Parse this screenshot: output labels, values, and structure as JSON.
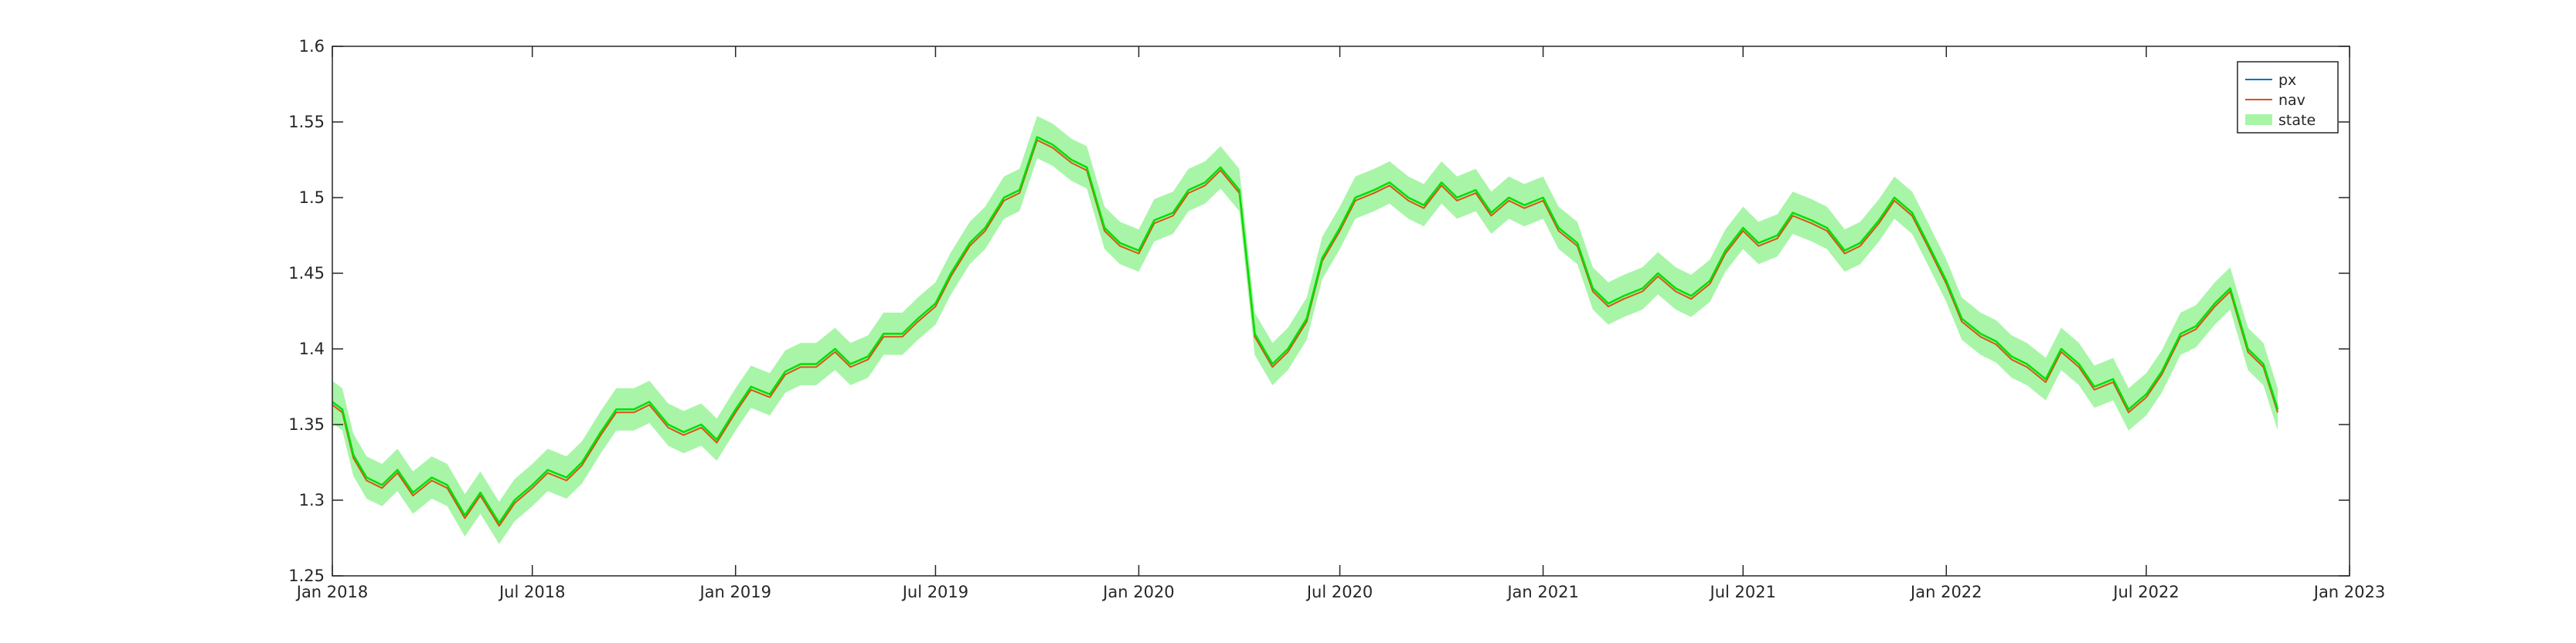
{
  "chart_data": {
    "type": "line",
    "title": "",
    "xlabel": "",
    "ylabel": "",
    "xlim": [
      "2018-01-01",
      "2023-01-01"
    ],
    "ylim": [
      1.25,
      1.6
    ],
    "x_ticks": [
      {
        "date": "2018-01-01",
        "label": "Jan 2018"
      },
      {
        "date": "2018-07-01",
        "label": "Jul 2018"
      },
      {
        "date": "2019-01-01",
        "label": "Jan 2019"
      },
      {
        "date": "2019-07-01",
        "label": "Jul 2019"
      },
      {
        "date": "2020-01-01",
        "label": "Jan 2020"
      },
      {
        "date": "2020-07-01",
        "label": "Jul 2020"
      },
      {
        "date": "2021-01-01",
        "label": "Jan 2021"
      },
      {
        "date": "2021-07-01",
        "label": "Jul 2021"
      },
      {
        "date": "2022-01-01",
        "label": "Jan 2022"
      },
      {
        "date": "2022-07-01",
        "label": "Jul 2022"
      },
      {
        "date": "2023-01-01",
        "label": "Jan 2023"
      }
    ],
    "y_ticks": [
      {
        "value": 1.25,
        "label": "1.25"
      },
      {
        "value": 1.3,
        "label": "1.3"
      },
      {
        "value": 1.35,
        "label": "1.35"
      },
      {
        "value": 1.4,
        "label": "1.4"
      },
      {
        "value": 1.45,
        "label": "1.45"
      },
      {
        "value": 1.5,
        "label": "1.5"
      },
      {
        "value": 1.55,
        "label": "1.55"
      },
      {
        "value": 1.6,
        "label": "1.6"
      }
    ],
    "grid": false,
    "legend_position": "top-right",
    "band_halfwidth": 0.014,
    "series": [
      {
        "name": "px",
        "color": "#0072bd",
        "kind": "line",
        "y_offset": 0.0
      },
      {
        "name": "nav",
        "color": "#d95319",
        "kind": "line",
        "y_offset": -0.002
      },
      {
        "name": "state",
        "color": "#00e000",
        "band_color": "#a8f5a8",
        "kind": "line+band",
        "y_offset": 0.0
      }
    ],
    "x": [
      "2018-01-01",
      "2018-01-10",
      "2018-01-20",
      "2018-02-01",
      "2018-02-15",
      "2018-03-01",
      "2018-03-15",
      "2018-04-01",
      "2018-04-15",
      "2018-05-01",
      "2018-05-15",
      "2018-06-01",
      "2018-06-15",
      "2018-07-01",
      "2018-07-15",
      "2018-08-01",
      "2018-08-15",
      "2018-09-01",
      "2018-09-15",
      "2018-10-01",
      "2018-10-15",
      "2018-11-01",
      "2018-11-15",
      "2018-12-01",
      "2018-12-15",
      "2019-01-01",
      "2019-01-15",
      "2019-02-01",
      "2019-02-15",
      "2019-03-01",
      "2019-03-15",
      "2019-04-01",
      "2019-04-15",
      "2019-05-01",
      "2019-05-15",
      "2019-06-01",
      "2019-06-15",
      "2019-07-01",
      "2019-07-15",
      "2019-08-01",
      "2019-08-15",
      "2019-09-01",
      "2019-09-15",
      "2019-10-01",
      "2019-10-15",
      "2019-11-01",
      "2019-11-15",
      "2019-12-01",
      "2019-12-15",
      "2020-01-01",
      "2020-01-15",
      "2020-02-01",
      "2020-02-15",
      "2020-03-01",
      "2020-03-15",
      "2020-04-01",
      "2020-04-15",
      "2020-05-01",
      "2020-05-15",
      "2020-06-01",
      "2020-06-15",
      "2020-07-01",
      "2020-07-15",
      "2020-08-01",
      "2020-08-15",
      "2020-09-01",
      "2020-09-15",
      "2020-10-01",
      "2020-10-15",
      "2020-11-01",
      "2020-11-15",
      "2020-12-01",
      "2020-12-15",
      "2021-01-01",
      "2021-01-15",
      "2021-02-01",
      "2021-02-15",
      "2021-03-01",
      "2021-03-15",
      "2021-04-01",
      "2021-04-15",
      "2021-05-01",
      "2021-05-15",
      "2021-06-01",
      "2021-06-15",
      "2021-07-01",
      "2021-07-15",
      "2021-08-01",
      "2021-08-15",
      "2021-09-01",
      "2021-09-15",
      "2021-10-01",
      "2021-10-15",
      "2021-11-01",
      "2021-11-15",
      "2021-12-01",
      "2021-12-15",
      "2022-01-01",
      "2022-01-15",
      "2022-02-01",
      "2022-02-15",
      "2022-03-01",
      "2022-03-15",
      "2022-04-01",
      "2022-04-15",
      "2022-05-01",
      "2022-05-15",
      "2022-06-01",
      "2022-06-15",
      "2022-07-01",
      "2022-07-15",
      "2022-08-01",
      "2022-08-15",
      "2022-09-01",
      "2022-09-15",
      "2022-10-01",
      "2022-10-15",
      "2022-10-28"
    ],
    "y": [
      1.365,
      1.36,
      1.33,
      1.315,
      1.31,
      1.32,
      1.305,
      1.315,
      1.31,
      1.29,
      1.305,
      1.285,
      1.3,
      1.31,
      1.32,
      1.315,
      1.325,
      1.345,
      1.36,
      1.36,
      1.365,
      1.35,
      1.345,
      1.35,
      1.34,
      1.36,
      1.375,
      1.37,
      1.385,
      1.39,
      1.39,
      1.4,
      1.39,
      1.395,
      1.41,
      1.41,
      1.42,
      1.43,
      1.45,
      1.47,
      1.48,
      1.5,
      1.505,
      1.54,
      1.535,
      1.525,
      1.52,
      1.48,
      1.47,
      1.465,
      1.485,
      1.49,
      1.505,
      1.51,
      1.52,
      1.505,
      1.41,
      1.39,
      1.4,
      1.42,
      1.46,
      1.48,
      1.5,
      1.505,
      1.51,
      1.5,
      1.495,
      1.51,
      1.5,
      1.505,
      1.49,
      1.5,
      1.495,
      1.5,
      1.48,
      1.47,
      1.44,
      1.43,
      1.435,
      1.44,
      1.45,
      1.44,
      1.435,
      1.445,
      1.465,
      1.48,
      1.47,
      1.475,
      1.49,
      1.485,
      1.48,
      1.465,
      1.47,
      1.485,
      1.5,
      1.49,
      1.47,
      1.445,
      1.42,
      1.41,
      1.405,
      1.395,
      1.39,
      1.38,
      1.4,
      1.39,
      1.375,
      1.38,
      1.36,
      1.37,
      1.385,
      1.41,
      1.415,
      1.43,
      1.44,
      1.4,
      1.39,
      1.36
    ]
  },
  "legend": {
    "px_label": "px",
    "nav_label": "nav",
    "state_label": "state"
  }
}
